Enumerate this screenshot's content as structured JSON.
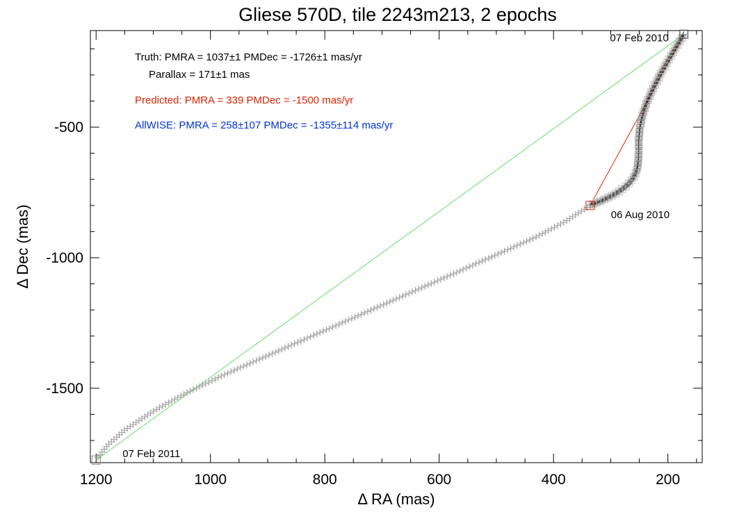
{
  "chart_data": {
    "type": "scatter",
    "title": "Gliese 570D, tile 2243m213, 2 epochs",
    "xlabel": "Δ RA (mas)",
    "ylabel": "Δ Dec (mas)",
    "xlim": [
      1210,
      140
    ],
    "ylim": [
      -1785,
      -130
    ],
    "x_reversed": true,
    "x_ticks": [
      1200,
      1000,
      800,
      600,
      400,
      200
    ],
    "y_ticks": [
      -500,
      -1000,
      -1500
    ],
    "annotations": [
      {
        "text": "Truth: PMRA = 1037±1   PMDec = -1726±1 mas/yr",
        "color": "#000000"
      },
      {
        "text": "Parallax = 171±1 mas",
        "color": "#000000"
      },
      {
        "text": "Predicted: PMRA = 339   PMDec = -1500 mas/yr",
        "color": "#dd2200"
      },
      {
        "text": "AllWISE: PMRA = 258±107   PMDec = -1355±114 mas/yr",
        "color": "#0033dd"
      }
    ],
    "epoch_labels": [
      {
        "text": "07 Feb 2010",
        "x": 172,
        "y": -144
      },
      {
        "text": "06 Aug 2010",
        "x": 336,
        "y": -800
      },
      {
        "text": "07 Feb 2011",
        "x": 1200,
        "y": -1775
      }
    ],
    "series": [
      {
        "role": "true-track-first-half",
        "color": "#000000",
        "x": [
          172,
          186,
          200,
          213,
          225,
          236,
          244,
          249,
          251,
          251,
          252,
          255,
          262,
          272,
          285,
          300,
          316,
          330,
          336
        ],
        "y": [
          -144,
          -195,
          -246,
          -296,
          -348,
          -400,
          -450,
          -500,
          -550,
          -598,
          -638,
          -670,
          -700,
          -724,
          -746,
          -765,
          -782,
          -794,
          -800
        ]
      },
      {
        "role": "true-track-second-half",
        "color": "#999999",
        "x": [
          336,
          380,
          430,
          490,
          560,
          640,
          730,
          820,
          900,
          980,
          1050,
          1100,
          1150,
          1180,
          1200
        ],
        "y": [
          -800,
          -862,
          -920,
          -979,
          -1047,
          -1124,
          -1211,
          -1298,
          -1375,
          -1452,
          -1527,
          -1588,
          -1660,
          -1718,
          -1775
        ]
      },
      {
        "role": "predicted-motion",
        "color": "#dd2200",
        "x": [
          172,
          336,
          172
        ],
        "y": [
          -144,
          -800,
          -144
        ]
      },
      {
        "role": "allwise-motion",
        "color": "#66dd66",
        "x": [
          172,
          1200
        ],
        "y": [
          -144,
          -1775
        ]
      }
    ],
    "epoch_markers": [
      {
        "x": 172,
        "y": -144,
        "color": "#555555"
      },
      {
        "x": 336,
        "y": -800,
        "color": "#dd2200"
      },
      {
        "x": 1200,
        "y": -1775,
        "color": "#888888"
      }
    ]
  }
}
